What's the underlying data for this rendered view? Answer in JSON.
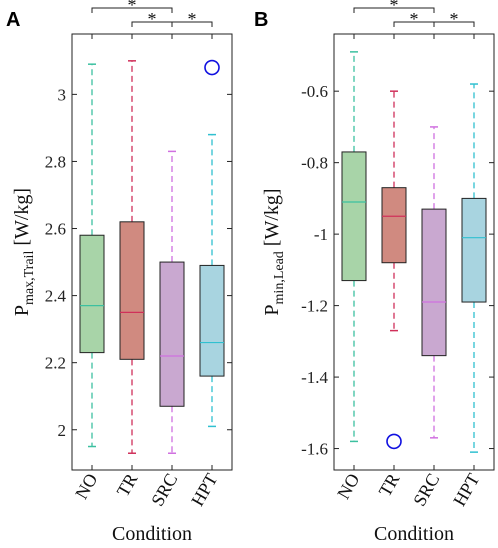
{
  "chart_data": [
    {
      "panel": "A",
      "type": "box",
      "categories": [
        "NO",
        "TR",
        "SRC",
        "HPT"
      ],
      "colors": [
        "#a8d4a8",
        "#d08a80",
        "#c9a8d0",
        "#a8d4e0"
      ],
      "whisker_colors": [
        "#3cc0a0",
        "#d0305a",
        "#d070e0",
        "#30c0d0"
      ],
      "boxes": [
        {
          "name": "NO",
          "whislo": 1.95,
          "q1": 2.23,
          "med": 2.37,
          "q3": 2.58,
          "whishi": 3.09,
          "outliers": []
        },
        {
          "name": "TR",
          "whislo": 1.93,
          "q1": 2.21,
          "med": 2.35,
          "q3": 2.62,
          "whishi": 3.1,
          "outliers": []
        },
        {
          "name": "SRC",
          "whislo": 1.93,
          "q1": 2.07,
          "med": 2.22,
          "q3": 2.5,
          "whishi": 2.83,
          "outliers": []
        },
        {
          "name": "HPT",
          "whislo": 2.01,
          "q1": 2.16,
          "med": 2.26,
          "q3": 2.49,
          "whishi": 2.88,
          "outliers": [
            3.08
          ]
        }
      ],
      "ylim": [
        1.88,
        3.18
      ],
      "yticks": [
        2,
        2.2,
        2.4,
        2.6,
        2.8,
        3
      ],
      "ytick_labels": [
        "2",
        "2.2",
        "2.4",
        "2.6",
        "2.8",
        "3"
      ],
      "ylabel_main": "P",
      "ylabel_sub": "max,Trail",
      "ylabel_unit": "[W/kg]",
      "xlabel": "Condition",
      "significance": [
        {
          "from": "NO",
          "to": "SRC",
          "label": "*"
        },
        {
          "from": "TR",
          "to": "SRC",
          "label": "*"
        },
        {
          "from": "SRC",
          "to": "HPT",
          "label": "*"
        }
      ]
    },
    {
      "panel": "B",
      "type": "box",
      "categories": [
        "NO",
        "TR",
        "SRC",
        "HPT"
      ],
      "colors": [
        "#a8d4a8",
        "#d08a80",
        "#c9a8d0",
        "#a8d4e0"
      ],
      "whisker_colors": [
        "#3cc0a0",
        "#d0305a",
        "#d070e0",
        "#30c0d0"
      ],
      "boxes": [
        {
          "name": "NO",
          "whislo": -1.58,
          "q1": -1.13,
          "med": -0.91,
          "q3": -0.77,
          "whishi": -0.49,
          "outliers": []
        },
        {
          "name": "TR",
          "whislo": -1.27,
          "q1": -1.08,
          "med": -0.95,
          "q3": -0.87,
          "whishi": -0.6,
          "outliers": [
            -1.58
          ]
        },
        {
          "name": "SRC",
          "whislo": -1.57,
          "q1": -1.34,
          "med": -1.19,
          "q3": -0.93,
          "whishi": -0.7,
          "outliers": []
        },
        {
          "name": "HPT",
          "whislo": -1.61,
          "q1": -1.19,
          "med": -1.01,
          "q3": -0.9,
          "whishi": -0.58,
          "outliers": []
        }
      ],
      "ylim": [
        -1.66,
        -0.44
      ],
      "yticks": [
        -1.6,
        -1.4,
        -1.2,
        -1,
        -0.8,
        -0.6
      ],
      "ytick_labels": [
        "-1.6",
        "-1.4",
        "-1.2",
        "-1",
        "-0.8",
        "-0.6"
      ],
      "ylabel_main": "P",
      "ylabel_sub": "min,Lead",
      "ylabel_unit": "[W/kg]",
      "xlabel": "Condition",
      "significance": [
        {
          "from": "NO",
          "to": "SRC",
          "label": "*"
        },
        {
          "from": "TR",
          "to": "SRC",
          "label": "*"
        },
        {
          "from": "SRC",
          "to": "HPT",
          "label": "*"
        }
      ]
    }
  ]
}
